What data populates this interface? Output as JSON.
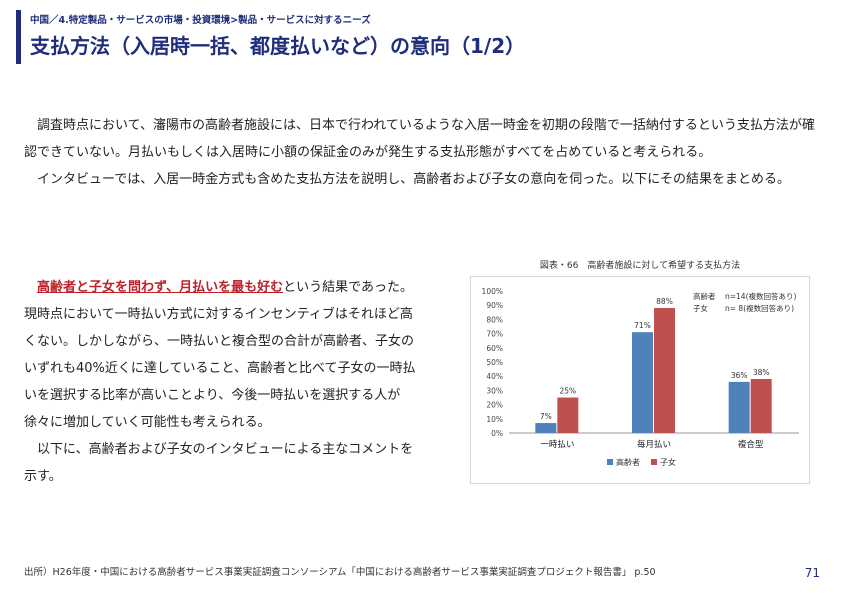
{
  "header": {
    "breadcrumb": "中国／4.特定製品・サービスの市場・投資環境>製品・サービスに対するニーズ",
    "title": "支払方法（入居時一括、都度払いなど）の意向（1/2）"
  },
  "intro": {
    "paragraph1": "調査時点において、瀋陽市の高齢者施設には、日本で行われているような入居一時金を初期の段階で一括納付するという支払方法が確認できていない。月払いもしくは入居時に小額の保証金のみが発生する支払形態がすべてを占めていると考えられる。",
    "paragraph2": "インタビューでは、入居一時金方式も含めた支払方法を説明し、高齢者および子女の意向を伺った。以下にその結果をまとめる。"
  },
  "body": {
    "highlight": "高齢者と子女を問わず、月払いを最も好む",
    "text_after_highlight": "という結果であった。現時点において一時払い方式に対するインセンティブはそれほど高くない。しかしながら、一時払いと複合型の合計が高齢者、子女のいずれも40%近くに達していること、高齢者と比べて子女の一時払いを選択する比率が高いことより、今後一時払いを選択する人が徐々に増加していく可能性も考えられる。",
    "paragraph2": "以下に、高齢者および子女のインタビューによる主なコメントを示す。"
  },
  "chart_data": {
    "type": "bar",
    "title": "図表・66　高齢者施設に対して希望する支払方法",
    "categories": [
      "一時払い",
      "毎月払い",
      "複合型"
    ],
    "series": [
      {
        "name": "高齢者",
        "values": [
          7,
          71,
          36
        ],
        "color": "#4f81bd"
      },
      {
        "name": "子女",
        "values": [
          25,
          88,
          38
        ],
        "color": "#c0504d"
      }
    ],
    "ylim": [
      0,
      100
    ],
    "yticks": [
      "0%",
      "10%",
      "20%",
      "30%",
      "40%",
      "50%",
      "60%",
      "70%",
      "80%",
      "90%",
      "100%"
    ],
    "data_labels": [
      [
        "7%",
        "71%",
        "36%"
      ],
      [
        "25%",
        "88%",
        "38%"
      ]
    ],
    "notes": [
      {
        "group": "高齢者",
        "text": "n=14(複数回答あり)"
      },
      {
        "group": "子女",
        "text": "n= 8(複数回答あり)"
      }
    ],
    "legend": [
      "高齢者",
      "子女"
    ],
    "legend_position": "bottom",
    "grid": false
  },
  "footer": {
    "source": "出所）H26年度・中国における高齢者サービス事業実証調査コンソーシアム「中国における高齢者サービス事業実証調査プロジェクト報告書」 p.50",
    "page_number": "71"
  }
}
